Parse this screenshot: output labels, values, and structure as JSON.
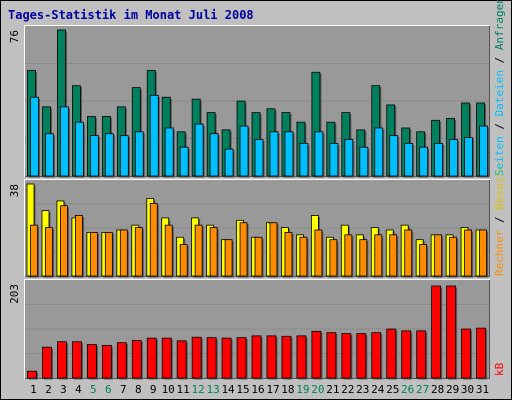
{
  "title": "Tages-Statistik im Monat Juli 2008",
  "colors": {
    "background": "#c0c0c0",
    "panel": "#999999",
    "title": "#0000a0",
    "hits": "#00805c",
    "files": "#00bfff",
    "pages": "#ff8c00",
    "visits": "#ffff00",
    "sites": "#ff6600",
    "kbytes": "#ff0000",
    "weekend": "#00805c",
    "weekday": "#000000"
  },
  "legend": {
    "top": {
      "hits": "Anfragen",
      "sep1": "/",
      "files": "Dateien",
      "sep2": "/",
      "pages": "Seiten",
      "sep3": "/",
      "visits": "Besuche"
    },
    "mid": {
      "sites": "Rechner"
    },
    "bottom": {
      "kbytes": "kB"
    }
  },
  "chart_data": [
    {
      "type": "bar",
      "panel": "top",
      "max_label": "76",
      "ylim": [
        0,
        76
      ],
      "categories": [
        "1",
        "2",
        "3",
        "4",
        "5",
        "6",
        "7",
        "8",
        "9",
        "10",
        "11",
        "12",
        "13",
        "14",
        "15",
        "16",
        "17",
        "18",
        "19",
        "20",
        "21",
        "22",
        "23",
        "24",
        "25",
        "26",
        "27",
        "28",
        "29",
        "30",
        "31"
      ],
      "series": [
        {
          "name": "Anfragen",
          "values": [
            55,
            36,
            76,
            47,
            31,
            31,
            36,
            46,
            55,
            41,
            23,
            40,
            33,
            24,
            39,
            33,
            35,
            33,
            28,
            54,
            28,
            33,
            24,
            47,
            37,
            25,
            23,
            29,
            30,
            38,
            38
          ]
        },
        {
          "name": "Dateien",
          "values": [
            41,
            22,
            36,
            28,
            21,
            22,
            21,
            23,
            42,
            25,
            15,
            27,
            22,
            14,
            26,
            19,
            23,
            23,
            17,
            23,
            17,
            19,
            15,
            25,
            21,
            17,
            15,
            17,
            19,
            20,
            26
          ]
        }
      ]
    },
    {
      "type": "bar",
      "panel": "middle",
      "max_label": "38",
      "ylim": [
        0,
        38
      ],
      "categories": [
        "1",
        "2",
        "3",
        "4",
        "5",
        "6",
        "7",
        "8",
        "9",
        "10",
        "11",
        "12",
        "13",
        "14",
        "15",
        "16",
        "17",
        "18",
        "19",
        "20",
        "21",
        "22",
        "23",
        "24",
        "25",
        "26",
        "27",
        "28",
        "29",
        "30",
        "31"
      ],
      "series": [
        {
          "name": "Seiten",
          "values": [
            38,
            27,
            31,
            24,
            18,
            18,
            19,
            21,
            32,
            24,
            16,
            24,
            21,
            15,
            23,
            16,
            22,
            20,
            17,
            25,
            16,
            21,
            17,
            20,
            19,
            21,
            15,
            17,
            17,
            20,
            19
          ]
        },
        {
          "name": "Besuche",
          "values": [
            21,
            20,
            29,
            25,
            18,
            18,
            19,
            20,
            30,
            21,
            13,
            21,
            20,
            15,
            22,
            16,
            22,
            18,
            16,
            19,
            15,
            17,
            15,
            17,
            17,
            19,
            13,
            17,
            16,
            19,
            19
          ]
        },
        {
          "name": "Rechner",
          "values": [
            21,
            20,
            29,
            25,
            18,
            18,
            19,
            20,
            30,
            21,
            13,
            21,
            20,
            15,
            22,
            16,
            22,
            18,
            16,
            19,
            15,
            17,
            15,
            17,
            17,
            19,
            13,
            17,
            16,
            19,
            19
          ]
        }
      ]
    },
    {
      "type": "bar",
      "panel": "bottom",
      "max_label": "203",
      "ylim": [
        0,
        203
      ],
      "categories": [
        "1",
        "2",
        "3",
        "4",
        "5",
        "6",
        "7",
        "8",
        "9",
        "10",
        "11",
        "12",
        "13",
        "14",
        "15",
        "16",
        "17",
        "18",
        "19",
        "20",
        "21",
        "22",
        "23",
        "24",
        "25",
        "26",
        "27",
        "28",
        "29",
        "30",
        "31"
      ],
      "series": [
        {
          "name": "kB",
          "values": [
            15,
            68,
            80,
            80,
            74,
            72,
            78,
            83,
            88,
            88,
            82,
            90,
            89,
            88,
            89,
            93,
            93,
            92,
            93,
            103,
            100,
            98,
            98,
            100,
            108,
            104,
            104,
            203,
            203,
            108,
            110
          ]
        }
      ]
    }
  ],
  "x_labels": [
    {
      "label": "1",
      "weekend": false
    },
    {
      "label": "2",
      "weekend": false
    },
    {
      "label": "3",
      "weekend": false
    },
    {
      "label": "4",
      "weekend": false
    },
    {
      "label": "5",
      "weekend": true
    },
    {
      "label": "6",
      "weekend": true
    },
    {
      "label": "7",
      "weekend": false
    },
    {
      "label": "8",
      "weekend": false
    },
    {
      "label": "9",
      "weekend": false
    },
    {
      "label": "10",
      "weekend": false
    },
    {
      "label": "11",
      "weekend": false
    },
    {
      "label": "12",
      "weekend": true
    },
    {
      "label": "13",
      "weekend": true
    },
    {
      "label": "14",
      "weekend": false
    },
    {
      "label": "15",
      "weekend": false
    },
    {
      "label": "16",
      "weekend": false
    },
    {
      "label": "17",
      "weekend": false
    },
    {
      "label": "18",
      "weekend": false
    },
    {
      "label": "19",
      "weekend": true
    },
    {
      "label": "20",
      "weekend": true
    },
    {
      "label": "21",
      "weekend": false
    },
    {
      "label": "22",
      "weekend": false
    },
    {
      "label": "23",
      "weekend": false
    },
    {
      "label": "24",
      "weekend": false
    },
    {
      "label": "25",
      "weekend": false
    },
    {
      "label": "26",
      "weekend": true
    },
    {
      "label": "27",
      "weekend": true
    },
    {
      "label": "28",
      "weekend": false
    },
    {
      "label": "29",
      "weekend": false
    },
    {
      "label": "30",
      "weekend": false
    },
    {
      "label": "31",
      "weekend": false
    }
  ]
}
